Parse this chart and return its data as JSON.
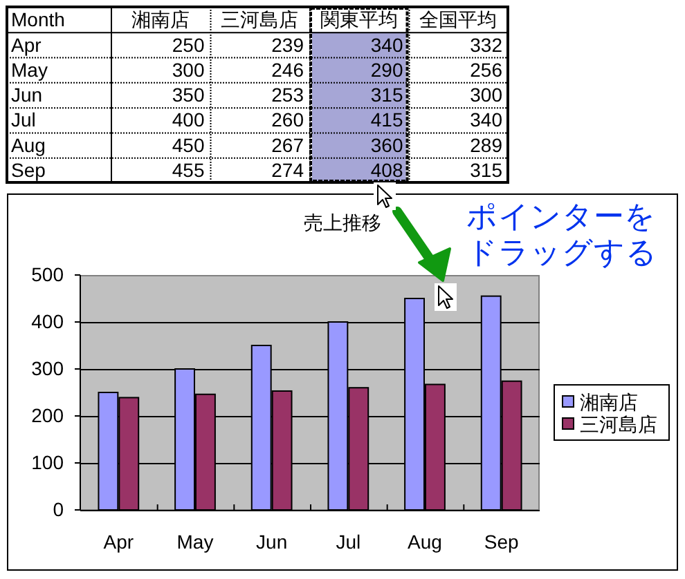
{
  "chart_data": [
    {
      "type": "other",
      "xlabel": "Month",
      "categories": [
        "Apr",
        "May",
        "Jun",
        "Jul",
        "Aug",
        "Sep"
      ],
      "series": [
        {
          "name": "湘南店",
          "values": [
            250,
            300,
            350,
            400,
            450,
            455
          ]
        },
        {
          "name": "三河島店",
          "values": [
            239,
            246,
            253,
            260,
            267,
            274
          ]
        },
        {
          "name": "関東平均",
          "color": "#a6a6d6",
          "values": [
            340,
            290,
            315,
            415,
            360,
            408
          ]
        },
        {
          "name": "全国平均",
          "values": [
            332,
            256,
            300,
            340,
            289,
            315
          ]
        }
      ],
      "data_labels": true
    },
    {
      "type": "bar",
      "title": "売上推移",
      "categories": [
        "Apr",
        "May",
        "Jun",
        "Jul",
        "Aug",
        "Sep"
      ],
      "series": [
        {
          "name": "湘南店",
          "color": "#9999ff",
          "values": [
            250,
            300,
            350,
            400,
            450,
            455
          ]
        },
        {
          "name": "三河島店",
          "color": "#993366",
          "values": [
            239,
            246,
            253,
            260,
            267,
            274
          ]
        }
      ],
      "ylim": [
        0,
        500
      ],
      "yticks": [
        0,
        100,
        200,
        300,
        400,
        500
      ],
      "grid": "y",
      "legend": "right",
      "annotations": [
        "ポインターをドラッグする"
      ]
    }
  ]
}
